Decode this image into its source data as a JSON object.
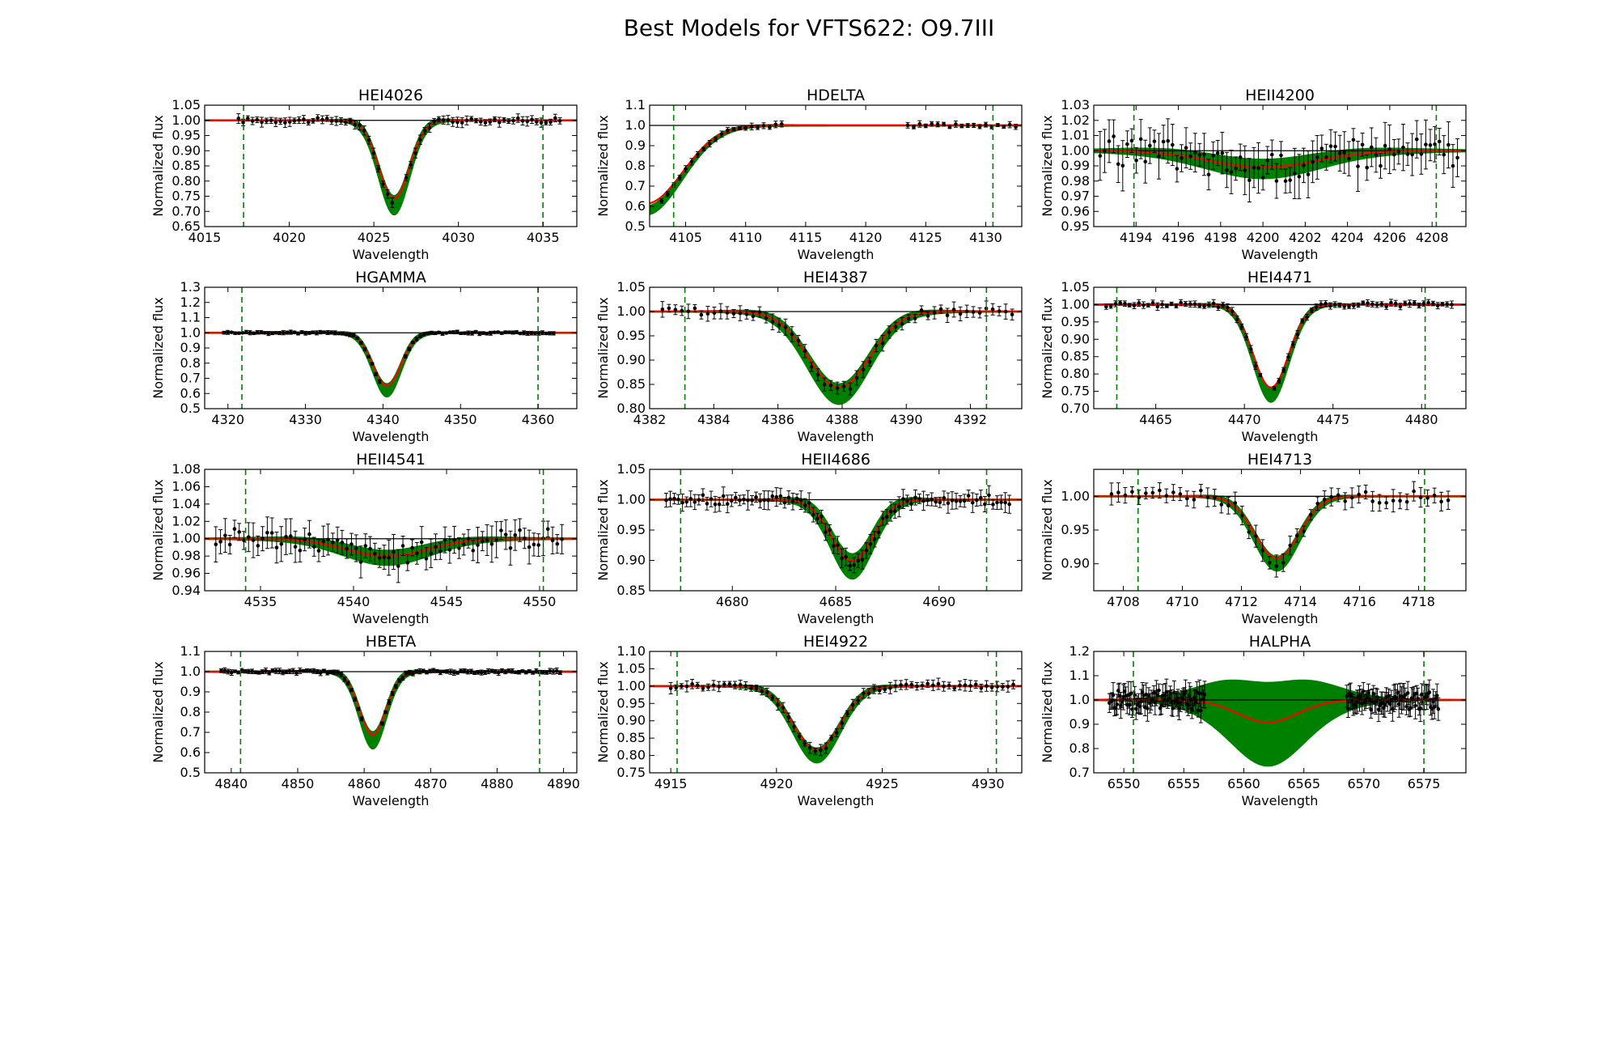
{
  "figure": {
    "title": "Best Models for VFTS622: O9.7III"
  },
  "colors": {
    "model_band": "#008000",
    "best_fit": "#ff0000",
    "continuum": "#000000",
    "data": "#000000",
    "line_limits": "#008000"
  },
  "chart_data": [
    {
      "type": "line",
      "title": "HEI4026",
      "xlabel": "Wavelength",
      "ylabel": "Normalized flux",
      "xlim": [
        4015,
        4037
      ],
      "ylim": [
        0.65,
        1.05
      ],
      "xticks": [
        4015,
        4020,
        4025,
        4030,
        4035
      ],
      "xtick_labels": [
        "4015",
        "4020",
        "4025",
        "4030",
        "4035"
      ],
      "yticks": [
        0.65,
        0.7,
        0.75,
        0.8,
        0.85,
        0.9,
        0.95,
        1.0,
        1.05
      ],
      "ytick_labels": [
        "0.65",
        "0.70",
        "0.75",
        "0.80",
        "0.85",
        "0.90",
        "0.95",
        "1.00",
        "1.05"
      ],
      "limits": [
        4017.3,
        4035.0
      ],
      "line_center": 4026.2,
      "depth": 0.28,
      "width": 0.9,
      "band": 0.03,
      "data_range": [
        4017,
        4036
      ],
      "data_n": 70,
      "data_gap": [
        4026.3,
        4026.9
      ],
      "err": 0.012,
      "scatter": 0.008,
      "grid": false
    },
    {
      "type": "line",
      "title": "HDELTA",
      "xlabel": "Wavelength",
      "ylabel": "Normalized flux",
      "xlim": [
        4102,
        4133
      ],
      "ylim": [
        0.5,
        1.1
      ],
      "xticks": [
        4105,
        4110,
        4115,
        4120,
        4125,
        4130
      ],
      "xtick_labels": [
        "4105",
        "4110",
        "4115",
        "4120",
        "4125",
        "4130"
      ],
      "yticks": [
        0.5,
        0.6,
        0.7,
        0.8,
        0.9,
        1.0,
        1.1
      ],
      "ytick_labels": [
        "0.5",
        "0.6",
        "0.7",
        "0.8",
        "0.9",
        "1.0",
        "1.1"
      ],
      "limits": [
        4104.0,
        4130.6
      ],
      "line_center": 4101.7,
      "depth": 0.42,
      "width": 3.0,
      "band": 0.02,
      "data_range": [
        4103,
        4132.5
      ],
      "data_n": 60,
      "data_gap": [
        4113.2,
        4123.3
      ],
      "err": 0.012,
      "scatter": 0.008,
      "grid": false
    },
    {
      "type": "line",
      "title": "HEII4200",
      "xlabel": "Wavelength",
      "ylabel": "Normalized flux",
      "xlim": [
        4192,
        4209.6
      ],
      "ylim": [
        0.95,
        1.03
      ],
      "xticks": [
        4194,
        4196,
        4198,
        4200,
        4202,
        4204,
        4206,
        4208
      ],
      "xtick_labels": [
        "4194",
        "4196",
        "4198",
        "4200",
        "4202",
        "4204",
        "4206",
        "4208"
      ],
      "yticks": [
        0.95,
        0.96,
        0.97,
        0.98,
        0.99,
        1.0,
        1.01,
        1.02,
        1.03
      ],
      "ytick_labels": [
        "0.95",
        "0.96",
        "0.97",
        "0.98",
        "0.99",
        "1.00",
        "1.01",
        "1.02",
        "1.03"
      ],
      "limits": [
        4193.9,
        4208.2
      ],
      "line_center": 4200.0,
      "depth": 0.012,
      "width": 2.5,
      "band": 0.006,
      "data_range": [
        4192.3,
        4209.2
      ],
      "data_n": 80,
      "data_gap": [
        0,
        0
      ],
      "err": 0.012,
      "scatter": 0.01,
      "grid": false
    },
    {
      "type": "line",
      "title": "HGAMMA",
      "xlabel": "Wavelength",
      "ylabel": "Normalized flux",
      "xlim": [
        4317,
        4365
      ],
      "ylim": [
        0.5,
        1.3
      ],
      "xticks": [
        4320,
        4330,
        4340,
        4350,
        4360
      ],
      "xtick_labels": [
        "4320",
        "4330",
        "4340",
        "4350",
        "4360"
      ],
      "yticks": [
        0.5,
        0.6,
        0.7,
        0.8,
        0.9,
        1.0,
        1.1,
        1.2,
        1.3
      ],
      "ytick_labels": [
        "0.5",
        "0.6",
        "0.7",
        "0.8",
        "0.9",
        "1.0",
        "1.1",
        "1.2",
        "1.3"
      ],
      "limits": [
        4321.8,
        4360.0
      ],
      "line_center": 4340.5,
      "depth": 0.38,
      "width": 1.8,
      "band": 0.04,
      "data_range": [
        4319.5,
        4362
      ],
      "data_n": 90,
      "data_gap": [
        4340.0,
        4342.6
      ],
      "err": 0.01,
      "scatter": 0.006,
      "grid": false
    },
    {
      "type": "line",
      "title": "HEI4387",
      "xlabel": "Wavelength",
      "ylabel": "Normalized flux",
      "xlim": [
        4382,
        4393.6
      ],
      "ylim": [
        0.8,
        1.05
      ],
      "xticks": [
        4382,
        4384,
        4386,
        4388,
        4390,
        4392
      ],
      "xtick_labels": [
        "4382",
        "4384",
        "4386",
        "4388",
        "4390",
        "4392"
      ],
      "yticks": [
        0.8,
        0.85,
        0.9,
        0.95,
        1.0,
        1.05
      ],
      "ytick_labels": [
        "0.80",
        "0.85",
        "0.90",
        "0.95",
        "1.00",
        "1.05"
      ],
      "limits": [
        4383.1,
        4392.5
      ],
      "line_center": 4387.9,
      "depth": 0.17,
      "width": 0.95,
      "band": 0.02,
      "data_range": [
        4382.4,
        4393.3
      ],
      "data_n": 55,
      "data_gap": [
        0,
        0
      ],
      "err": 0.012,
      "scatter": 0.008,
      "grid": false
    },
    {
      "type": "line",
      "title": "HEI4471",
      "xlabel": "Wavelength",
      "ylabel": "Normalized flux",
      "xlim": [
        4461.5,
        4482.5
      ],
      "ylim": [
        0.7,
        1.05
      ],
      "xticks": [
        4465,
        4470,
        4475,
        4480
      ],
      "xtick_labels": [
        "4465",
        "4470",
        "4475",
        "4480"
      ],
      "yticks": [
        0.7,
        0.75,
        0.8,
        0.85,
        0.9,
        0.95,
        1.0,
        1.05
      ],
      "ytick_labels": [
        "0.70",
        "0.75",
        "0.80",
        "0.85",
        "0.90",
        "0.95",
        "1.00",
        "1.05"
      ],
      "limits": [
        4462.8,
        4480.2
      ],
      "line_center": 4471.5,
      "depth": 0.26,
      "width": 1.0,
      "band": 0.02,
      "data_range": [
        4462.2,
        4481.7
      ],
      "data_n": 75,
      "data_gap": [
        4471.0,
        4471.5
      ],
      "err": 0.008,
      "scatter": 0.006,
      "grid": false
    },
    {
      "type": "line",
      "title": "HEII4541",
      "xlabel": "Wavelength",
      "ylabel": "Normalized flux",
      "xlim": [
        4532,
        4552
      ],
      "ylim": [
        0.94,
        1.08
      ],
      "xticks": [
        4535,
        4540,
        4545,
        4550
      ],
      "xtick_labels": [
        "4535",
        "4540",
        "4545",
        "4550"
      ],
      "yticks": [
        0.94,
        0.96,
        0.98,
        1.0,
        1.02,
        1.04,
        1.06,
        1.08
      ],
      "ytick_labels": [
        "0.94",
        "0.96",
        "0.98",
        "1.00",
        "1.02",
        "1.04",
        "1.06",
        "1.08"
      ],
      "limits": [
        4534.2,
        4550.2
      ],
      "line_center": 4541.8,
      "depth": 0.022,
      "width": 2.2,
      "band": 0.008,
      "data_range": [
        4532.6,
        4551.2
      ],
      "data_n": 75,
      "data_gap": [
        0,
        0
      ],
      "err": 0.015,
      "scatter": 0.012,
      "grid": false
    },
    {
      "type": "line",
      "title": "HEII4686",
      "xlabel": "Wavelength",
      "ylabel": "Normalized flux",
      "xlim": [
        4676,
        4694
      ],
      "ylim": [
        0.85,
        1.05
      ],
      "xticks": [
        4680,
        4685,
        4690
      ],
      "xtick_labels": [
        "4680",
        "4685",
        "4690"
      ],
      "yticks": [
        0.85,
        0.9,
        0.95,
        1.0,
        1.05
      ],
      "ytick_labels": [
        "0.85",
        "0.90",
        "0.95",
        "1.00",
        "1.05"
      ],
      "limits": [
        4677.5,
        4692.3
      ],
      "line_center": 4685.8,
      "depth": 0.11,
      "width": 1.0,
      "band": 0.02,
      "data_range": [
        4676.8,
        4693.4
      ],
      "data_n": 85,
      "data_gap": [
        0,
        0
      ],
      "err": 0.012,
      "scatter": 0.008,
      "grid": false
    },
    {
      "type": "line",
      "title": "HEI4713",
      "xlabel": "Wavelength",
      "ylabel": "Normalized flux",
      "xlim": [
        4707,
        4719.6
      ],
      "ylim": [
        0.86,
        1.04
      ],
      "xticks": [
        4708,
        4710,
        4712,
        4714,
        4716,
        4718
      ],
      "xtick_labels": [
        "4708",
        "4710",
        "4712",
        "4714",
        "4716",
        "4718"
      ],
      "yticks": [
        0.9,
        0.95,
        1.0
      ],
      "ytick_labels": [
        "0.90",
        "0.95",
        "1.00"
      ],
      "limits": [
        4708.5,
        4718.2
      ],
      "line_center": 4713.2,
      "depth": 0.1,
      "width": 0.75,
      "band": 0.01,
      "data_range": [
        4707.6,
        4719.0
      ],
      "data_n": 50,
      "data_gap": [
        0,
        0
      ],
      "err": 0.012,
      "scatter": 0.01,
      "grid": false
    },
    {
      "type": "line",
      "title": "HBETA",
      "xlabel": "Wavelength",
      "ylabel": "Normalized flux",
      "xlim": [
        4836,
        4892
      ],
      "ylim": [
        0.5,
        1.1
      ],
      "xticks": [
        4840,
        4850,
        4860,
        4870,
        4880,
        4890
      ],
      "xtick_labels": [
        "4840",
        "4850",
        "4860",
        "4870",
        "4880",
        "4890"
      ],
      "yticks": [
        0.5,
        0.6,
        0.7,
        0.8,
        0.9,
        1.0,
        1.1
      ],
      "ytick_labels": [
        "0.5",
        "0.6",
        "0.7",
        "0.8",
        "0.9",
        "1.0",
        "1.1"
      ],
      "limits": [
        4841.4,
        4886.4
      ],
      "line_center": 4861.3,
      "depth": 0.34,
      "width": 2.0,
      "band": 0.04,
      "data_range": [
        4838.5,
        4889.5
      ],
      "data_n": 100,
      "data_gap": [
        4860.0,
        4862.3
      ],
      "err": 0.01,
      "scatter": 0.006,
      "grid": false
    },
    {
      "type": "line",
      "title": "HEI4922",
      "xlabel": "Wavelength",
      "ylabel": "Normalized flux",
      "xlim": [
        4914,
        4931.6
      ],
      "ylim": [
        0.75,
        1.1
      ],
      "xticks": [
        4915,
        4920,
        4925,
        4930
      ],
      "xtick_labels": [
        "4915",
        "4920",
        "4925",
        "4930"
      ],
      "yticks": [
        0.75,
        0.8,
        0.85,
        0.9,
        0.95,
        1.0,
        1.05,
        1.1
      ],
      "ytick_labels": [
        "0.75",
        "0.80",
        "0.85",
        "0.90",
        "0.95",
        "1.00",
        "1.05",
        "1.10"
      ],
      "limits": [
        4915.3,
        4930.4
      ],
      "line_center": 4921.9,
      "depth": 0.2,
      "width": 1.1,
      "band": 0.02,
      "data_range": [
        4915.0,
        4931.2
      ],
      "data_n": 65,
      "data_gap": [
        0,
        0
      ],
      "err": 0.012,
      "scatter": 0.008,
      "grid": false
    },
    {
      "type": "line",
      "title": "HALPHA",
      "xlabel": "Wavelength",
      "ylabel": "Normalized flux",
      "xlim": [
        6547.5,
        6578.5
      ],
      "ylim": [
        0.7,
        1.2
      ],
      "xticks": [
        6550,
        6555,
        6560,
        6565,
        6570,
        6575
      ],
      "xtick_labels": [
        "6550",
        "6555",
        "6560",
        "6565",
        "6570",
        "6575"
      ],
      "yticks": [
        0.7,
        0.8,
        0.9,
        1.0,
        1.1,
        1.2
      ],
      "ytick_labels": [
        "0.7",
        "0.8",
        "0.9",
        "1.0",
        "1.1",
        "1.2"
      ],
      "limits": [
        6550.8,
        6575.0
      ],
      "line_center": 6562.0,
      "depth": 0.1,
      "width": 2.5,
      "band": 0.17,
      "data_range": [
        6548.8,
        6576.2
      ],
      "data_n": 260,
      "data_gap": [
        6556.8,
        6568.5
      ],
      "err": 0.04,
      "scatter": 0.04,
      "grid": false
    }
  ]
}
